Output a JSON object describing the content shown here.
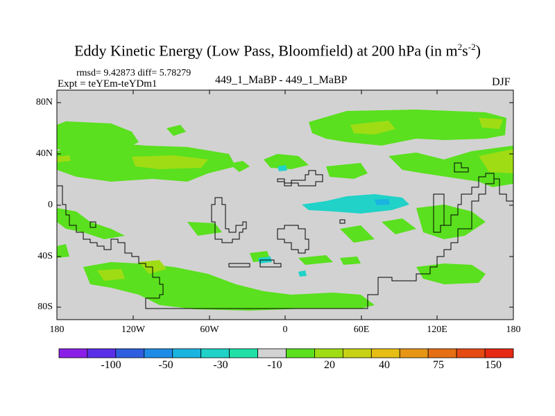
{
  "title": {
    "main": "Eddy Kinetic Energy (Low Pass, Bloomfield) at 200 hPa (in m",
    "sup1": "2",
    "mid": "s",
    "sup2": "-2",
    "end": ")"
  },
  "stats": "rmsd= 9.42873 diff= 5.78279",
  "experiment": "Expt = teYEm-teYDm1",
  "runs": "449_1_MaBP - 449_1_MaBP",
  "season": "DJF",
  "lat_labels": [
    "80N",
    "40N",
    "0",
    "40S",
    "80S"
  ],
  "lon_labels": [
    "180",
    "120W",
    "60W",
    "0",
    "60E",
    "120E",
    "180"
  ],
  "colorbar": {
    "labels": [
      "-100",
      "-50",
      "-30",
      "-10",
      "20",
      "40",
      "75",
      "150"
    ],
    "colors": [
      "#8a1ee6",
      "#5a2fe8",
      "#2f5fe0",
      "#1e8ce6",
      "#1ab4e0",
      "#20d2c8",
      "#20e0a8",
      "#d2d2d2",
      "#5ae01e",
      "#a0dc14",
      "#c8d214",
      "#e6be14",
      "#e69614",
      "#e66e14",
      "#e64a14",
      "#e62814"
    ]
  },
  "map": {
    "background_color": "#d2d2d2",
    "positive_light": "#5ae01e",
    "positive_mid": "#a0dc14",
    "negative_light": "#20d2c8"
  }
}
